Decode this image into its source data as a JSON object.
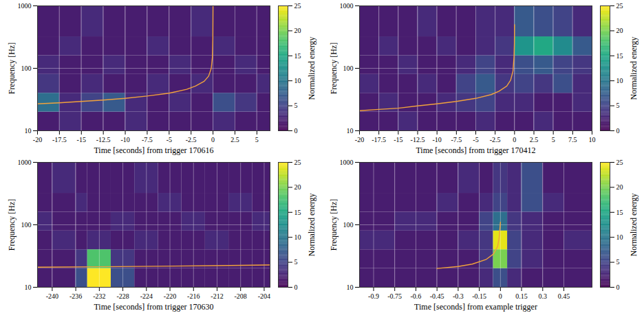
{
  "chart_data": [
    {
      "type": "heatmap",
      "x_label": "Time [seconds] from trigger 170616",
      "y_label": "Frequency [Hz]",
      "xlim": [
        -20,
        6.5
      ],
      "xticks": [
        -20,
        -17.5,
        -15,
        -12.5,
        -10,
        -7.5,
        -5,
        -2.5,
        0,
        2.5,
        5
      ],
      "ylim": [
        10,
        1000
      ],
      "yticks": [
        10,
        100,
        1000
      ],
      "log": "y",
      "grid": true,
      "time_edges": [
        -20,
        -17.5,
        -15,
        -12.5,
        -10,
        -7.5,
        -5,
        -2.5,
        0,
        2.5,
        5,
        6.5
      ],
      "frequency_edges": [
        10,
        20,
        40,
        80,
        160,
        320,
        1000
      ],
      "energy": [
        [
          2,
          3,
          2,
          2,
          3,
          2,
          2,
          2,
          3,
          2,
          2
        ],
        [
          9,
          3,
          5,
          7,
          3,
          2,
          3,
          2,
          6,
          4,
          2
        ],
        [
          4,
          2,
          3,
          2,
          2,
          3,
          2,
          3,
          2,
          2,
          3
        ],
        [
          3,
          2,
          2,
          3,
          2,
          2,
          3,
          2,
          2,
          3,
          2
        ],
        [
          2,
          3,
          2,
          2,
          2,
          3,
          2,
          2,
          3,
          2,
          2
        ],
        [
          2,
          2,
          3,
          2,
          2,
          2,
          2,
          3,
          2,
          2,
          2
        ]
      ],
      "colorbar": {
        "label": "Normalized energy",
        "range": [
          0,
          25
        ],
        "ticks": [
          0,
          5,
          10,
          15,
          20,
          25
        ]
      },
      "series": [
        {
          "type": "line",
          "color": "#f0a23c",
          "x": [
            -20,
            -17.5,
            -15,
            -12.5,
            -10,
            -7.5,
            -5,
            -3,
            -2,
            -1,
            -0.5,
            -0.2,
            -0.07,
            -0.02,
            0
          ],
          "values": [
            27,
            28,
            29.5,
            31,
            33,
            36,
            40,
            46,
            52,
            62,
            75,
            100,
            150,
            300,
            1000
          ]
        }
      ]
    },
    {
      "type": "heatmap",
      "x_label": "Time [seconds] from trigger 170412",
      "y_label": "Frequency [Hz]",
      "xlim": [
        -20,
        10
      ],
      "xticks": [
        -20,
        -17.5,
        -15,
        -12.5,
        -10,
        -7.5,
        -5,
        -2.5,
        0,
        2.5,
        5,
        7.5,
        10
      ],
      "ylim": [
        10,
        1000
      ],
      "yticks": [
        10,
        100,
        1000
      ],
      "log": "y",
      "grid": true,
      "time_edges": [
        -20,
        -17.5,
        -15,
        -12.5,
        -10,
        -7.5,
        -5,
        -2.5,
        0,
        2.5,
        5,
        7.5,
        10
      ],
      "frequency_edges": [
        10,
        20,
        40,
        80,
        160,
        320,
        1000
      ],
      "energy": [
        [
          2,
          2,
          3,
          2,
          2,
          2,
          3,
          2,
          2,
          3,
          2,
          2
        ],
        [
          2,
          3,
          2,
          2,
          3,
          4,
          5,
          3,
          3,
          2,
          2,
          3
        ],
        [
          3,
          2,
          2,
          3,
          2,
          5,
          7,
          4,
          5,
          4,
          6,
          3
        ],
        [
          2,
          2,
          3,
          2,
          2,
          3,
          5,
          3,
          6,
          7,
          5,
          4
        ],
        [
          2,
          3,
          2,
          2,
          3,
          2,
          3,
          4,
          13,
          15,
          12,
          7
        ],
        [
          2,
          2,
          2,
          3,
          2,
          2,
          3,
          3,
          7,
          6,
          5,
          3
        ]
      ],
      "colorbar": {
        "label": "Normalized energy",
        "range": [
          0,
          25
        ],
        "ticks": [
          0,
          5,
          10,
          15,
          20,
          25
        ]
      },
      "series": [
        {
          "type": "line",
          "color": "#f0a23c",
          "x": [
            -20,
            -17.5,
            -15,
            -12.5,
            -10,
            -7.5,
            -5,
            -3,
            -2,
            -1,
            -0.5,
            -0.2,
            -0.07,
            -0.02,
            0
          ],
          "values": [
            21,
            22,
            23,
            25,
            27,
            29.5,
            33,
            38,
            43,
            52,
            65,
            90,
            150,
            250,
            500
          ]
        }
      ]
    },
    {
      "type": "heatmap",
      "x_label": "Time [seconds] from trigger 170630",
      "y_label": "Frequency [Hz]",
      "xlim": [
        -242.5,
        -203
      ],
      "xticks": [
        -240,
        -236,
        -232,
        -228,
        -224,
        -220,
        -216,
        -212,
        -208,
        -204
      ],
      "ylim": [
        10,
        1000
      ],
      "yticks": [
        10,
        100,
        1000
      ],
      "log": "y",
      "grid": true,
      "time_edges": [
        -242.5,
        -240,
        -236,
        -234,
        -230,
        -226,
        -222,
        -218,
        -214,
        -210,
        -206,
        -203
      ],
      "frequency_edges": [
        10,
        20,
        40,
        80,
        160,
        320,
        1000
      ],
      "energy": [
        [
          2,
          2,
          6,
          25,
          6,
          2,
          2,
          2,
          2,
          2,
          2
        ],
        [
          2,
          2,
          4,
          18,
          4,
          2,
          2,
          2,
          2,
          2,
          2
        ],
        [
          2,
          3,
          2,
          3,
          2,
          3,
          2,
          2,
          3,
          2,
          2
        ],
        [
          3,
          2,
          2,
          2,
          3,
          2,
          2,
          3,
          2,
          2,
          3
        ],
        [
          2,
          2,
          3,
          2,
          2,
          2,
          3,
          2,
          2,
          3,
          2
        ],
        [
          2,
          3,
          2,
          2,
          2,
          3,
          2,
          2,
          2,
          2,
          2
        ]
      ],
      "colorbar": {
        "label": "Normalized energy",
        "range": [
          0,
          25
        ],
        "ticks": [
          0,
          5,
          10,
          15,
          20,
          25
        ]
      },
      "series": [
        {
          "type": "line",
          "color": "#f0a23c",
          "x": [
            -242.5,
            -232,
            -222,
            -212,
            -203
          ],
          "values": [
            21,
            21.3,
            21.7,
            22.2,
            22.8
          ]
        }
      ]
    },
    {
      "type": "heatmap",
      "x_label": "Time [seconds] from example trigger",
      "y_label": "Frequency [Hz]",
      "xlim": [
        -1,
        0.65
      ],
      "xticks": [
        -0.9,
        -0.75,
        -0.6,
        -0.45,
        -0.3,
        -0.15,
        0,
        0.15,
        0.3,
        0.45
      ],
      "ylim": [
        10,
        1000
      ],
      "yticks": [
        10,
        100,
        1000
      ],
      "log": "y",
      "grid": true,
      "time_edges": [
        -1,
        -0.75,
        -0.45,
        -0.3,
        -0.15,
        -0.05,
        0.05,
        0.15,
        0.3,
        0.45,
        0.65
      ],
      "frequency_edges": [
        10,
        20,
        40,
        80,
        160,
        320,
        1000
      ],
      "energy": [
        [
          2,
          2,
          2,
          2,
          3,
          6,
          3,
          2,
          2,
          2
        ],
        [
          2,
          2,
          2,
          2,
          4,
          20,
          5,
          3,
          2,
          2
        ],
        [
          3,
          2,
          2,
          3,
          4,
          24,
          5,
          3,
          2,
          3
        ],
        [
          2,
          3,
          2,
          2,
          5,
          9,
          4,
          3,
          2,
          2
        ],
        [
          2,
          2,
          3,
          2,
          3,
          5,
          3,
          6,
          3,
          2
        ],
        [
          2,
          2,
          2,
          3,
          2,
          4,
          3,
          6,
          2,
          2
        ]
      ],
      "colorbar": {
        "label": "Normalized energy",
        "range": [
          0,
          25
        ],
        "ticks": [
          0,
          5,
          10,
          15,
          20,
          25
        ]
      },
      "series": [
        {
          "type": "line",
          "color": "#f0a23c",
          "x": [
            -0.45,
            -0.3,
            -0.2,
            -0.1,
            -0.05,
            -0.02,
            -0.01,
            0
          ],
          "values": [
            20,
            21.5,
            23.5,
            28,
            34,
            45,
            60,
            110
          ]
        }
      ]
    }
  ]
}
